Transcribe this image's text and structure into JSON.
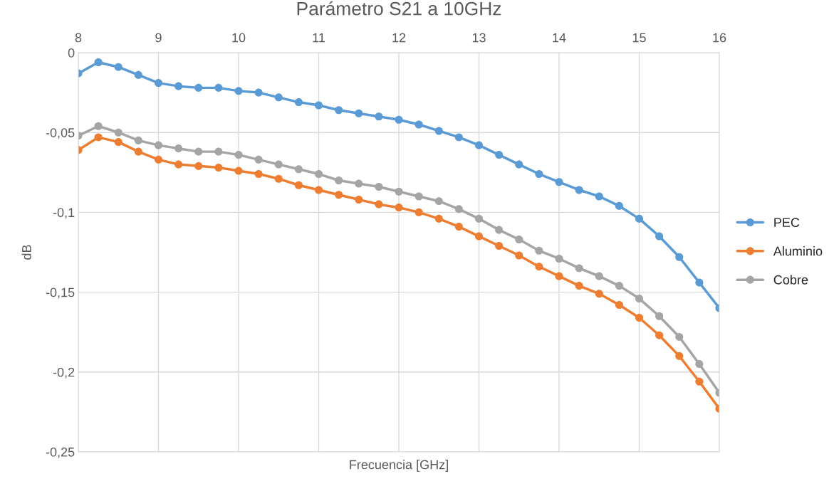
{
  "chart_data": {
    "type": "line",
    "title": "Parámetro S21 a 10GHz",
    "xlabel": "Frecuencia [GHz]",
    "ylabel": "dB",
    "x": [
      8,
      8.25,
      8.5,
      8.75,
      9,
      9.25,
      9.5,
      9.75,
      10,
      10.25,
      10.5,
      10.75,
      11,
      11.25,
      11.5,
      11.75,
      12,
      12.25,
      12.5,
      12.75,
      13,
      13.25,
      13.5,
      13.75,
      14,
      14.25,
      14.5,
      14.75,
      15,
      15.25,
      15.5,
      15.75,
      16
    ],
    "series": [
      {
        "name": "PEC",
        "color": "#5b9bd5",
        "values": [
          -0.013,
          -0.006,
          -0.009,
          -0.014,
          -0.019,
          -0.021,
          -0.022,
          -0.022,
          -0.024,
          -0.025,
          -0.028,
          -0.031,
          -0.033,
          -0.036,
          -0.038,
          -0.04,
          -0.042,
          -0.045,
          -0.049,
          -0.053,
          -0.058,
          -0.064,
          -0.07,
          -0.076,
          -0.081,
          -0.086,
          -0.09,
          -0.096,
          -0.104,
          -0.115,
          -0.128,
          -0.144,
          -0.16
        ]
      },
      {
        "name": "Aluminio",
        "color": "#ed7d31",
        "values": [
          -0.061,
          -0.053,
          -0.056,
          -0.062,
          -0.067,
          -0.07,
          -0.071,
          -0.072,
          -0.074,
          -0.076,
          -0.079,
          -0.083,
          -0.086,
          -0.089,
          -0.092,
          -0.095,
          -0.097,
          -0.1,
          -0.104,
          -0.109,
          -0.115,
          -0.121,
          -0.127,
          -0.134,
          -0.14,
          -0.146,
          -0.151,
          -0.158,
          -0.166,
          -0.177,
          -0.19,
          -0.206,
          -0.223
        ]
      },
      {
        "name": "Cobre",
        "color": "#a5a5a5",
        "values": [
          -0.052,
          -0.046,
          -0.05,
          -0.055,
          -0.058,
          -0.06,
          -0.062,
          -0.062,
          -0.064,
          -0.067,
          -0.07,
          -0.073,
          -0.076,
          -0.08,
          -0.082,
          -0.084,
          -0.087,
          -0.09,
          -0.093,
          -0.098,
          -0.104,
          -0.111,
          -0.117,
          -0.124,
          -0.129,
          -0.135,
          -0.14,
          -0.146,
          -0.154,
          -0.165,
          -0.178,
          -0.195,
          -0.213
        ]
      }
    ],
    "xlim": [
      8,
      16
    ],
    "xticks": [
      8,
      9,
      10,
      11,
      12,
      13,
      14,
      15,
      16
    ],
    "ylim": [
      -0.25,
      0
    ],
    "yticks": [
      {
        "value": -0.25,
        "label": "-0,25"
      },
      {
        "value": -0.2,
        "label": "-0,2"
      },
      {
        "value": -0.15,
        "label": "-0,15"
      },
      {
        "value": -0.1,
        "label": "-0,1"
      },
      {
        "value": -0.05,
        "label": "-0,05"
      },
      0
    ],
    "grid": true,
    "legend": "right",
    "marker": "circle",
    "line_style": "solid"
  }
}
